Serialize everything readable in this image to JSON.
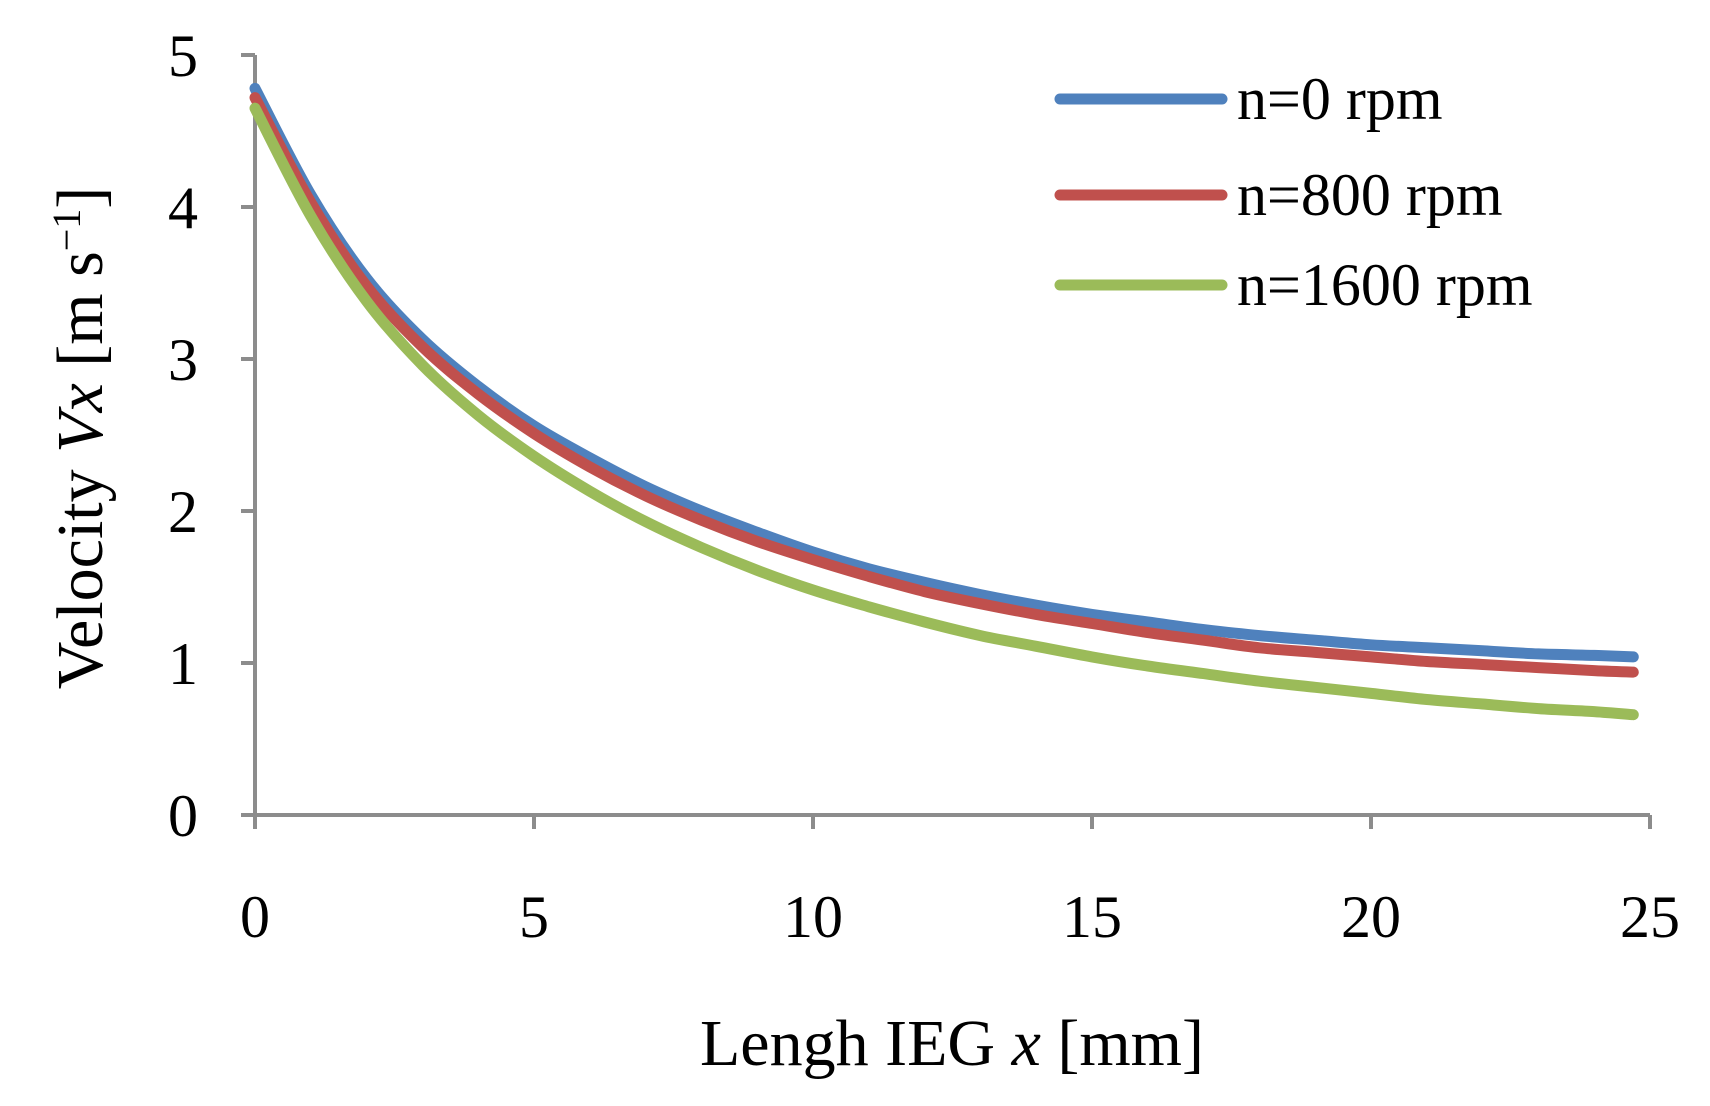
{
  "chart_data": {
    "type": "line",
    "title": "",
    "xlabel": "Lengh IEG x [mm]",
    "ylabel": "Velocity Vx [m s⁻¹]",
    "xlabel_parts": {
      "prefix": "Lengh IEG ",
      "var": "x",
      "suffix": " [mm]"
    },
    "ylabel_parts": {
      "prefix": "Velocity ",
      "var": "Vx",
      "unit_open": " [m s",
      "unit_exp": "−1",
      "unit_close": "]"
    },
    "xlim": [
      0,
      25
    ],
    "ylim": [
      0,
      5
    ],
    "xticks": [
      "0",
      "5",
      "10",
      "15",
      "20",
      "25"
    ],
    "yticks": [
      "0",
      "1",
      "2",
      "3",
      "4",
      "5"
    ],
    "grid": false,
    "legend_position": "top-right",
    "x": [
      0,
      1,
      2,
      3,
      4,
      5,
      6,
      7,
      8,
      9,
      10,
      11,
      12,
      13,
      14,
      15,
      16,
      17,
      18,
      19,
      20,
      21,
      22,
      23,
      24,
      24.7
    ],
    "series": [
      {
        "name": "n=0 rpm",
        "color": "#4F81BD",
        "values": [
          4.78,
          4.08,
          3.53,
          3.13,
          2.82,
          2.56,
          2.35,
          2.16,
          2.0,
          1.86,
          1.73,
          1.62,
          1.53,
          1.45,
          1.38,
          1.32,
          1.27,
          1.22,
          1.18,
          1.15,
          1.12,
          1.1,
          1.08,
          1.06,
          1.05,
          1.04
        ]
      },
      {
        "name": "n=800 rpm",
        "color": "#C0504D",
        "values": [
          4.72,
          4.03,
          3.48,
          3.08,
          2.77,
          2.51,
          2.29,
          2.1,
          1.94,
          1.8,
          1.68,
          1.57,
          1.47,
          1.39,
          1.32,
          1.26,
          1.2,
          1.15,
          1.1,
          1.07,
          1.04,
          1.01,
          0.99,
          0.97,
          0.95,
          0.94
        ]
      },
      {
        "name": "n=1600 rpm",
        "color": "#9BBB59",
        "values": [
          4.65,
          3.94,
          3.38,
          2.96,
          2.63,
          2.36,
          2.13,
          1.93,
          1.76,
          1.61,
          1.48,
          1.37,
          1.27,
          1.18,
          1.11,
          1.04,
          0.98,
          0.93,
          0.88,
          0.84,
          0.8,
          0.76,
          0.73,
          0.7,
          0.68,
          0.66
        ]
      }
    ],
    "colors": {
      "axis": "#8C8C8C",
      "text": "#000000"
    }
  }
}
